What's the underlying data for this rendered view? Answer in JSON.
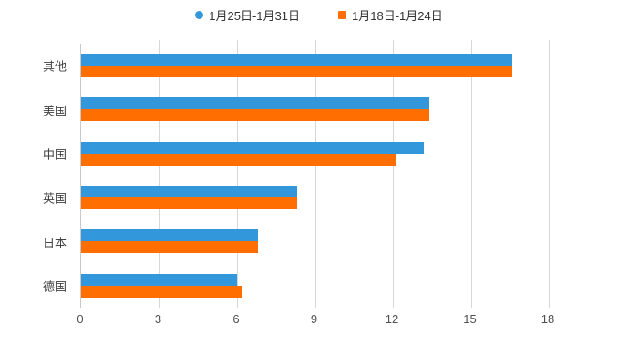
{
  "chart_data": {
    "type": "bar",
    "orientation": "horizontal",
    "title": "",
    "xlabel": "",
    "ylabel": "",
    "categories": [
      "其他",
      "美国",
      "中国",
      "英国",
      "日本",
      "德国"
    ],
    "series": [
      {
        "name": "1月25日-1月31日",
        "color": "#3398DB",
        "marker": "circle",
        "values": [
          16.6,
          13.4,
          13.2,
          8.3,
          6.8,
          6.0
        ]
      },
      {
        "name": "1月18日-1月24日",
        "color": "#FF6E00",
        "marker": "square",
        "values": [
          16.6,
          13.4,
          12.1,
          8.3,
          6.8,
          6.2
        ]
      }
    ],
    "xlim": [
      0,
      18
    ],
    "xticks": [
      0,
      3,
      6,
      9,
      12,
      15,
      18
    ],
    "grid": true,
    "legend_position": "top",
    "background": "#ffffff"
  },
  "colors": {
    "axis_line": "#c9c9c9",
    "grid_line": "#d6d6d6",
    "label_text": "#424242",
    "tick_text": "#4f4f4f",
    "legend_text": "#333333"
  }
}
